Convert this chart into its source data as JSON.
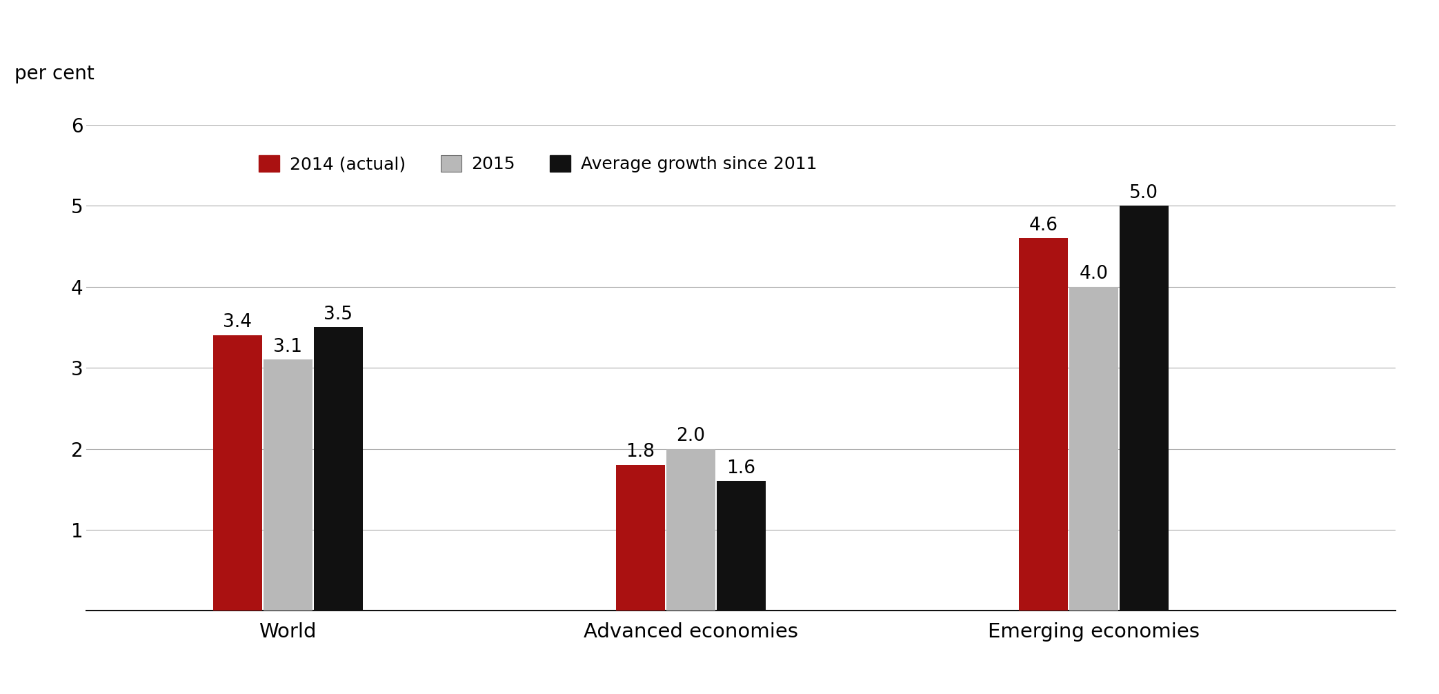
{
  "categories": [
    "World",
    "Advanced economies",
    "Emerging economies"
  ],
  "series": {
    "2014 (actual)": [
      3.4,
      1.8,
      4.6
    ],
    "2015": [
      3.1,
      2.0,
      4.0
    ],
    "Average growth since 2011": [
      3.5,
      1.6,
      5.0
    ]
  },
  "colors": {
    "2014 (actual)": "#aa1111",
    "2015": "#b8b8b8",
    "Average growth since 2011": "#111111"
  },
  "ylabel": "per cent",
  "ylim": [
    0,
    6
  ],
  "yticks": [
    0,
    1,
    2,
    3,
    4,
    5,
    6
  ],
  "bar_width": 0.25,
  "background_color": "#ffffff",
  "grid_color": "#aaaaaa"
}
